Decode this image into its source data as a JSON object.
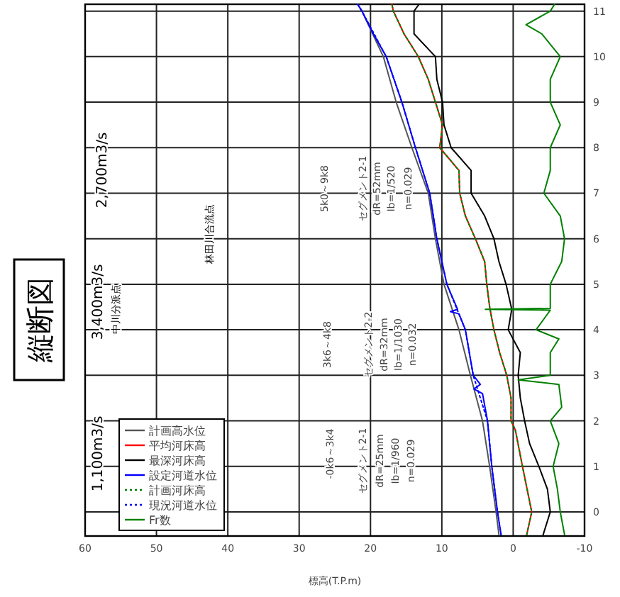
{
  "chart_data": {
    "type": "line",
    "title": "縦断図",
    "xlabel": "標高(T.P.m)",
    "xlim": [
      60,
      -10
    ],
    "ylim": [
      -0.53,
      11.15
    ],
    "xticks": [
      60,
      50,
      40,
      30,
      20,
      10,
      0,
      -10
    ],
    "yticks": [
      0,
      1,
      2,
      3,
      4,
      5,
      6,
      7,
      8,
      9,
      10,
      11
    ],
    "grid": true,
    "legend": "bottom left",
    "marker": "none",
    "annotations": [
      "1,100m3/s",
      "3,400m3/s",
      "中川分派点",
      "2,700m3/s",
      "林田川合流点",
      "-0k6～3k4",
      "セグメント2-1",
      "dR=25mm",
      "Ib=1/960",
      "n=0.029",
      "3k6～4k8",
      "セグメント2-2",
      "dR=32mm",
      "Ib=1/1030",
      "n=0.032",
      "5k0～9k8",
      "セグメント2-1",
      "dR=52mm",
      "Ib=1/520",
      "n=0.029"
    ],
    "series": [
      {
        "name": "計画高水位",
        "color": "#555555",
        "values": [
          -0.5,
          0,
          1,
          2,
          3,
          4,
          5,
          6,
          7,
          8,
          9,
          10,
          10.5,
          11,
          11.15
        ],
        "x": [
          2.0,
          2.4,
          3.3,
          4.3,
          6.0,
          7.6,
          9.7,
          10.9,
          11.9,
          14.2,
          16.4,
          18.2,
          19.7,
          21.2,
          21.8
        ]
      },
      {
        "name": "平均河床高",
        "color": "#ff0000",
        "values": [
          -0.5,
          0,
          1,
          1.8,
          2,
          2.5,
          3,
          3.5,
          4,
          4.5,
          5,
          5.5,
          6,
          6.5,
          7,
          7.5,
          8,
          8.5,
          9,
          9.5,
          10,
          10.5,
          11,
          11.15
        ],
        "x": [
          -1.9,
          -2.6,
          -1.3,
          -0.3,
          0.3,
          0.3,
          0.9,
          1.9,
          2.7,
          3.3,
          3.7,
          4.0,
          5.3,
          6.7,
          7.5,
          7.6,
          10.3,
          9.9,
          10.9,
          11.9,
          13.3,
          15.3,
          16.8,
          17.0
        ]
      },
      {
        "name": "最深河床高",
        "color": "#000000",
        "values": [
          -0.5,
          0,
          0.5,
          1,
          1.5,
          2,
          2.5,
          3,
          3.5,
          4,
          4.45,
          5,
          5.5,
          6,
          6.5,
          7,
          7.5,
          8,
          8.5,
          9,
          9.5,
          10,
          10.5,
          11,
          11.15
        ],
        "x": [
          -4.2,
          -5.2,
          -4.8,
          -3.6,
          -2.3,
          -1.6,
          -1.0,
          -0.7,
          -1.0,
          0.7,
          0.2,
          1.0,
          2.0,
          2.7,
          4.0,
          5.9,
          5.9,
          8.7,
          9.7,
          9.9,
          10.7,
          10.9,
          13.9,
          13.9,
          13.2
        ]
      },
      {
        "name": "設定河道水位",
        "color": "#0000ff",
        "values": [
          -0.5,
          0,
          1,
          2,
          2.6,
          2.7,
          2.8,
          3,
          4,
          4.35,
          4.4,
          4.45,
          5,
          6,
          7,
          8,
          9,
          10,
          10.5,
          11,
          11.15
        ],
        "x": [
          1.7,
          2.2,
          3.0,
          3.6,
          4.3,
          5.5,
          4.6,
          5.6,
          6.7,
          7.6,
          8.8,
          7.8,
          9.3,
          10.7,
          11.7,
          13.7,
          15.6,
          17.8,
          19.6,
          21.2,
          21.8
        ]
      },
      {
        "name": "計画河床高",
        "color": "#008000",
        "line_style": "dotted",
        "values": [
          -0.5,
          0,
          1,
          1.8,
          2,
          2.5,
          3,
          3.5,
          4,
          4.5,
          5,
          5.5,
          6,
          6.5,
          7,
          7.5,
          8,
          8.5,
          9,
          9.5,
          10,
          10.5,
          11,
          11.15
        ],
        "x": [
          -1.9,
          -2.6,
          -1.3,
          -0.3,
          0.3,
          0.3,
          0.9,
          1.9,
          2.7,
          3.3,
          3.7,
          4.0,
          5.3,
          6.7,
          7.5,
          7.6,
          10.3,
          9.9,
          10.9,
          11.9,
          13.3,
          15.3,
          16.8,
          17.0
        ]
      },
      {
        "name": "現況河道水位",
        "color": "#0000ff",
        "line_style": "dotted",
        "values": [
          -0.5,
          0,
          1,
          2,
          3,
          4,
          5,
          6,
          7,
          8,
          9,
          10,
          11,
          11.15
        ],
        "x": [
          1.7,
          2.2,
          3.0,
          3.6,
          5.6,
          6.7,
          9.3,
          10.7,
          11.7,
          13.7,
          15.6,
          17.8,
          21.2,
          21.8
        ]
      },
      {
        "name": "Fr数",
        "color": "#008000",
        "values": [
          -0.5,
          0,
          0.5,
          1,
          1.5,
          2,
          2.3,
          2.8,
          2.9,
          3,
          3.5,
          3.8,
          4,
          4.43,
          4.45,
          4.47,
          5,
          5.5,
          6,
          6.5,
          7,
          7.5,
          8,
          8.5,
          9,
          9.5,
          10,
          10.5,
          10.7,
          11,
          11.15
        ],
        "x": [
          -7.2,
          -6.6,
          -6.2,
          -5.6,
          -6.4,
          -5.2,
          -6.8,
          -6.4,
          -0.7,
          -5.2,
          -5.2,
          -6.4,
          -3.2,
          -5.2,
          3.9,
          -5.2,
          -5.2,
          -6.8,
          -7.2,
          -6.6,
          -4.3,
          -5.2,
          -5.2,
          -6.6,
          -5.2,
          -5.2,
          -6.6,
          -4.0,
          -1.8,
          -5.2,
          -5.8
        ]
      }
    ]
  }
}
